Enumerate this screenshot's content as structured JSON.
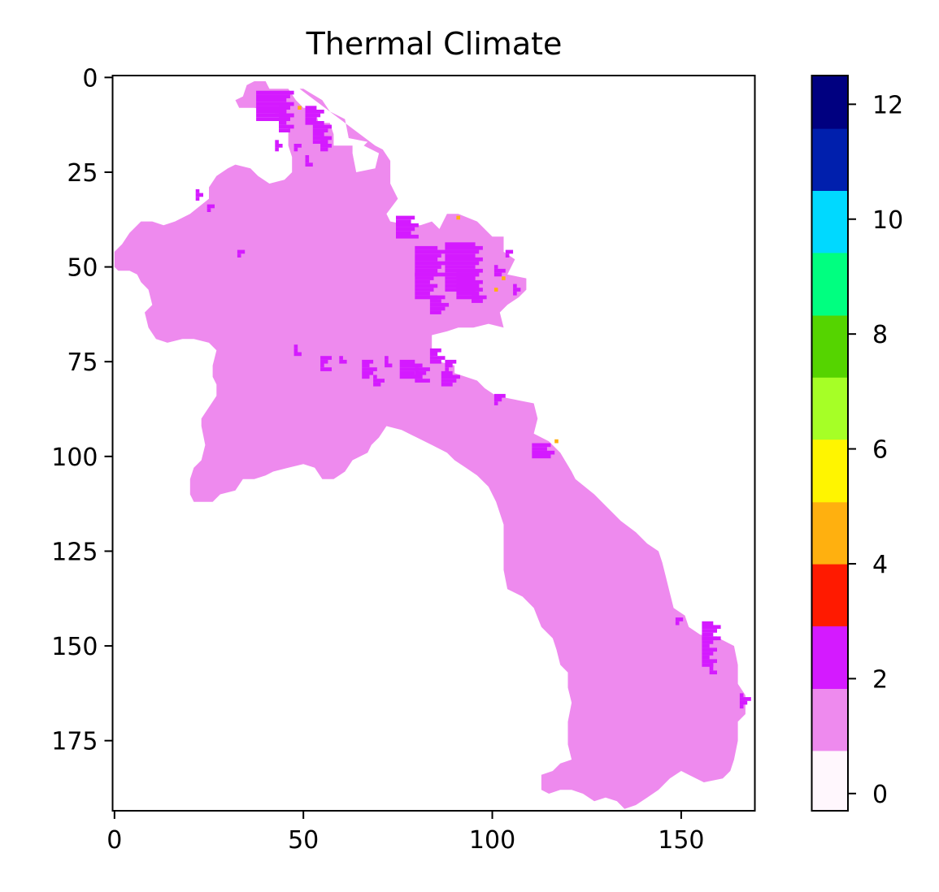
{
  "chart_data": {
    "type": "heatmap",
    "title": "Thermal Climate",
    "xlabel": "",
    "ylabel": "",
    "x_ticks": [
      0,
      50,
      100,
      150
    ],
    "y_ticks": [
      0,
      25,
      50,
      75,
      100,
      125,
      150,
      175
    ],
    "xlim": [
      -0.5,
      169.5
    ],
    "ylim": [
      193.5,
      -0.5
    ],
    "grid": false,
    "colorbar": {
      "ticks": [
        0,
        2,
        4,
        6,
        8,
        10,
        12
      ],
      "range": [
        -0.3,
        12.5
      ],
      "bins": [
        {
          "from": -0.3,
          "to": 0.75,
          "color": "#fff7fd"
        },
        {
          "from": 0.75,
          "to": 1.83,
          "color": "#ee8aee"
        },
        {
          "from": 1.83,
          "to": 2.92,
          "color": "#d41aff"
        },
        {
          "from": 2.92,
          "to": 4.0,
          "color": "#ff1a00"
        },
        {
          "from": 4.0,
          "to": 5.08,
          "color": "#ffb00f"
        },
        {
          "from": 5.08,
          "to": 6.17,
          "color": "#fff500"
        },
        {
          "from": 6.17,
          "to": 7.25,
          "color": "#a6ff26"
        },
        {
          "from": 7.25,
          "to": 8.33,
          "color": "#55d400"
        },
        {
          "from": 8.33,
          "to": 9.42,
          "color": "#00ff80"
        },
        {
          "from": 9.42,
          "to": 10.5,
          "color": "#00d9ff"
        },
        {
          "from": 10.5,
          "to": 11.58,
          "color": "#001fad"
        },
        {
          "from": 11.58,
          "to": 12.5,
          "color": "#000080"
        }
      ]
    },
    "region_outline": [
      [
        37,
        1
      ],
      [
        40,
        1
      ],
      [
        41,
        3
      ],
      [
        46,
        3
      ],
      [
        48,
        6
      ],
      [
        50,
        8
      ],
      [
        53,
        8
      ],
      [
        54,
        12
      ],
      [
        57,
        12
      ],
      [
        58,
        15
      ],
      [
        58,
        18
      ],
      [
        63,
        18
      ],
      [
        63,
        20
      ],
      [
        64,
        25
      ],
      [
        69,
        24
      ],
      [
        70,
        20
      ],
      [
        66,
        18
      ],
      [
        67,
        17
      ],
      [
        62,
        16
      ],
      [
        61,
        11
      ],
      [
        57,
        9
      ],
      [
        55,
        6
      ],
      [
        50,
        3
      ],
      [
        49,
        3
      ],
      [
        69,
        18
      ],
      [
        71,
        19
      ],
      [
        73,
        22
      ],
      [
        73,
        28
      ],
      [
        75,
        32
      ],
      [
        72,
        36
      ],
      [
        73,
        38
      ],
      [
        78,
        39
      ],
      [
        81,
        39
      ],
      [
        84,
        38
      ],
      [
        86,
        40
      ],
      [
        88,
        36
      ],
      [
        91,
        36
      ],
      [
        96,
        38
      ],
      [
        100,
        42
      ],
      [
        103,
        42
      ],
      [
        103,
        46
      ],
      [
        106,
        48
      ],
      [
        104,
        52
      ],
      [
        109,
        53
      ],
      [
        109,
        56
      ],
      [
        107,
        58
      ],
      [
        104,
        60
      ],
      [
        102,
        62
      ],
      [
        103,
        66
      ],
      [
        99,
        65
      ],
      [
        95,
        66
      ],
      [
        91,
        66
      ],
      [
        88,
        67
      ],
      [
        84,
        68
      ],
      [
        84,
        73
      ],
      [
        86,
        75
      ],
      [
        90,
        76
      ],
      [
        90,
        78
      ],
      [
        96,
        80
      ],
      [
        98,
        82
      ],
      [
        101,
        84
      ],
      [
        106,
        85
      ],
      [
        111,
        86
      ],
      [
        112,
        90
      ],
      [
        111,
        94
      ],
      [
        115,
        96
      ],
      [
        118,
        99
      ],
      [
        121,
        104
      ],
      [
        122,
        106
      ],
      [
        127,
        110
      ],
      [
        130,
        113
      ],
      [
        134,
        117
      ],
      [
        138,
        120
      ],
      [
        141,
        123
      ],
      [
        144,
        125
      ],
      [
        145,
        128
      ],
      [
        146,
        132
      ],
      [
        147,
        136
      ],
      [
        148,
        140
      ],
      [
        151,
        142
      ],
      [
        152,
        145
      ],
      [
        155,
        147
      ],
      [
        160,
        148
      ],
      [
        164,
        150
      ],
      [
        165,
        155
      ],
      [
        165,
        160
      ],
      [
        167,
        163
      ],
      [
        167,
        168
      ],
      [
        165,
        170
      ],
      [
        165,
        175
      ],
      [
        164,
        180
      ],
      [
        163,
        183
      ],
      [
        161,
        185
      ],
      [
        156,
        186
      ],
      [
        152,
        184
      ],
      [
        150,
        183
      ],
      [
        147,
        185
      ],
      [
        144,
        188
      ],
      [
        141,
        190
      ],
      [
        138,
        192
      ],
      [
        135,
        193
      ],
      [
        133,
        191
      ],
      [
        130,
        190
      ],
      [
        127,
        191
      ],
      [
        124,
        189
      ],
      [
        121,
        188
      ],
      [
        118,
        188
      ],
      [
        115,
        189
      ],
      [
        113,
        188
      ],
      [
        113,
        184
      ],
      [
        116,
        183
      ],
      [
        118,
        181
      ],
      [
        121,
        180
      ],
      [
        120,
        176
      ],
      [
        120,
        170
      ],
      [
        121,
        165
      ],
      [
        120,
        161
      ],
      [
        120,
        157
      ],
      [
        118,
        155
      ],
      [
        117,
        151
      ],
      [
        116,
        148
      ],
      [
        113,
        145
      ],
      [
        111,
        140
      ],
      [
        108,
        137
      ],
      [
        104,
        135
      ],
      [
        103,
        130
      ],
      [
        103,
        124
      ],
      [
        103,
        118
      ],
      [
        101,
        112
      ],
      [
        99,
        108
      ],
      [
        96,
        105
      ],
      [
        93,
        103
      ],
      [
        90,
        101
      ],
      [
        88,
        99
      ],
      [
        84,
        97
      ],
      [
        80,
        95
      ],
      [
        76,
        93
      ],
      [
        72,
        92
      ],
      [
        70,
        95
      ],
      [
        68,
        97
      ],
      [
        67,
        99
      ],
      [
        63,
        101
      ],
      [
        61,
        104
      ],
      [
        58,
        106
      ],
      [
        55,
        106
      ],
      [
        53,
        103
      ],
      [
        50,
        102
      ],
      [
        46,
        103
      ],
      [
        42,
        104
      ],
      [
        40,
        105
      ],
      [
        37,
        106
      ],
      [
        34,
        106
      ],
      [
        32,
        109
      ],
      [
        28,
        110
      ],
      [
        26,
        112
      ],
      [
        21,
        112
      ],
      [
        20,
        110
      ],
      [
        20,
        106
      ],
      [
        21,
        103
      ],
      [
        23,
        101
      ],
      [
        24,
        97
      ],
      [
        23,
        92
      ],
      [
        23,
        90
      ],
      [
        25,
        87
      ],
      [
        27,
        84
      ],
      [
        27,
        81
      ],
      [
        26,
        79
      ],
      [
        26,
        76
      ],
      [
        27,
        72
      ],
      [
        25,
        70
      ],
      [
        21,
        69
      ],
      [
        18,
        69
      ],
      [
        14,
        70
      ],
      [
        11,
        69
      ],
      [
        9,
        66
      ],
      [
        8,
        62
      ],
      [
        10,
        60
      ],
      [
        9,
        56
      ],
      [
        7,
        54
      ],
      [
        6,
        52
      ],
      [
        4,
        51
      ],
      [
        1,
        51
      ],
      [
        0,
        50
      ],
      [
        0,
        46
      ],
      [
        2,
        44
      ],
      [
        4,
        41
      ],
      [
        7,
        38
      ],
      [
        10,
        38
      ],
      [
        13,
        39
      ],
      [
        16,
        38
      ],
      [
        20,
        36
      ],
      [
        25,
        32
      ],
      [
        25,
        29
      ],
      [
        27,
        26
      ],
      [
        30,
        24
      ],
      [
        32,
        23
      ],
      [
        36,
        24
      ],
      [
        38,
        26
      ],
      [
        41,
        28
      ],
      [
        45,
        27
      ],
      [
        47,
        25
      ],
      [
        47,
        21
      ],
      [
        46,
        18
      ],
      [
        46,
        13
      ],
      [
        44,
        11
      ],
      [
        42,
        9
      ],
      [
        37,
        8
      ],
      [
        33,
        8
      ],
      [
        32,
        6
      ],
      [
        34,
        5
      ],
      [
        35,
        2
      ]
    ],
    "class2_patches": [
      [
        38,
        4,
        10,
        8
      ],
      [
        44,
        8,
        4,
        7
      ],
      [
        50,
        8,
        5,
        5
      ],
      [
        53,
        13,
        5,
        5
      ],
      [
        55,
        16,
        3,
        4
      ],
      [
        42,
        17,
        2,
        3
      ],
      [
        48,
        18,
        2,
        2
      ],
      [
        51,
        21,
        2,
        3
      ],
      [
        21,
        30,
        2,
        3
      ],
      [
        25,
        34,
        2,
        2
      ],
      [
        75,
        37,
        6,
        6
      ],
      [
        79,
        45,
        8,
        8
      ],
      [
        80,
        52,
        6,
        7
      ],
      [
        84,
        58,
        5,
        5
      ],
      [
        87,
        44,
        10,
        13
      ],
      [
        91,
        52,
        6,
        7
      ],
      [
        95,
        56,
        4,
        4
      ],
      [
        100,
        50,
        3,
        3
      ],
      [
        104,
        46,
        2,
        2
      ],
      [
        72,
        74,
        2,
        3
      ],
      [
        75,
        75,
        6,
        5
      ],
      [
        80,
        77,
        4,
        4
      ],
      [
        84,
        72,
        4,
        4
      ],
      [
        86,
        78,
        5,
        4
      ],
      [
        88,
        75,
        3,
        3
      ],
      [
        66,
        75,
        4,
        5
      ],
      [
        68,
        79,
        3,
        3
      ],
      [
        55,
        74,
        3,
        4
      ],
      [
        48,
        71,
        2,
        3
      ],
      [
        59,
        74,
        2,
        2
      ],
      [
        101,
        84,
        3,
        3
      ],
      [
        111,
        97,
        6,
        4
      ],
      [
        155,
        144,
        5,
        5
      ],
      [
        156,
        148,
        4,
        8
      ],
      [
        158,
        155,
        2,
        3
      ],
      [
        165,
        163,
        3,
        4
      ],
      [
        149,
        143,
        2,
        2
      ],
      [
        33,
        46,
        3,
        2
      ],
      [
        105,
        55,
        2,
        3
      ]
    ],
    "class4_spots": [
      [
        49,
        8
      ],
      [
        91,
        37
      ],
      [
        103,
        53
      ],
      [
        101,
        56
      ],
      [
        117,
        96
      ]
    ]
  }
}
